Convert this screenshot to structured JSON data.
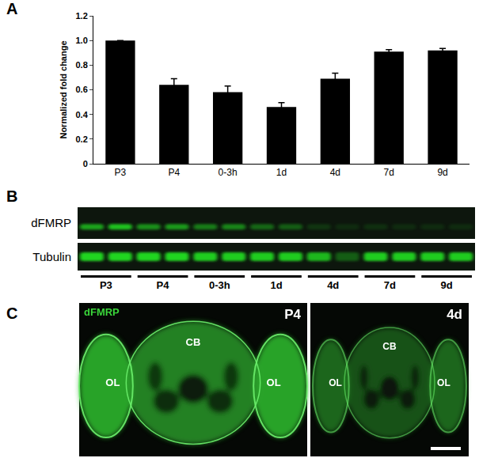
{
  "chart_data": {
    "type": "bar",
    "panel": "A",
    "categories": [
      "P3",
      "P4",
      "0-3h",
      "1d",
      "4d",
      "7d",
      "9d"
    ],
    "values": [
      1.0,
      0.64,
      0.58,
      0.46,
      0.69,
      0.91,
      0.92
    ],
    "errors": [
      0,
      0.05,
      0.05,
      0.035,
      0.045,
      0.015,
      0.015
    ],
    "color": "#000000",
    "ylabel": "Normalized fold change",
    "ylim": [
      0,
      1.2
    ],
    "yticks": [
      0,
      0.2,
      0.4,
      0.6,
      0.8,
      {
        "value": 1,
        "label": "1.0"
      },
      1.2
    ],
    "grid": false
  },
  "blot": {
    "panel": "B",
    "groups": [
      "P3",
      "P4",
      "0-3h",
      "1d",
      "4d",
      "7d",
      "9d"
    ],
    "rows": [
      {
        "label": "dFMRP",
        "intensity": [
          0.7,
          0.85,
          0.6,
          0.65,
          0.5,
          0.55,
          0.4,
          0.35,
          0.15,
          0.1,
          0.12,
          0.1,
          0.1,
          0.1
        ]
      },
      {
        "label": "Tubulin",
        "intensity": [
          0.95,
          0.95,
          0.95,
          0.95,
          0.9,
          0.9,
          0.9,
          0.9,
          0.8,
          0.35,
          0.9,
          0.9,
          0.9,
          0.9
        ]
      }
    ]
  },
  "images": {
    "panel": "C",
    "stain": "dFMRP",
    "panels": [
      {
        "label": "P4",
        "regions": [
          "OL",
          "CB",
          "OL"
        ],
        "intensity": 0.9
      },
      {
        "label": "4d",
        "regions": [
          "OL",
          "CB",
          "OL"
        ],
        "intensity": 0.55
      }
    ]
  }
}
